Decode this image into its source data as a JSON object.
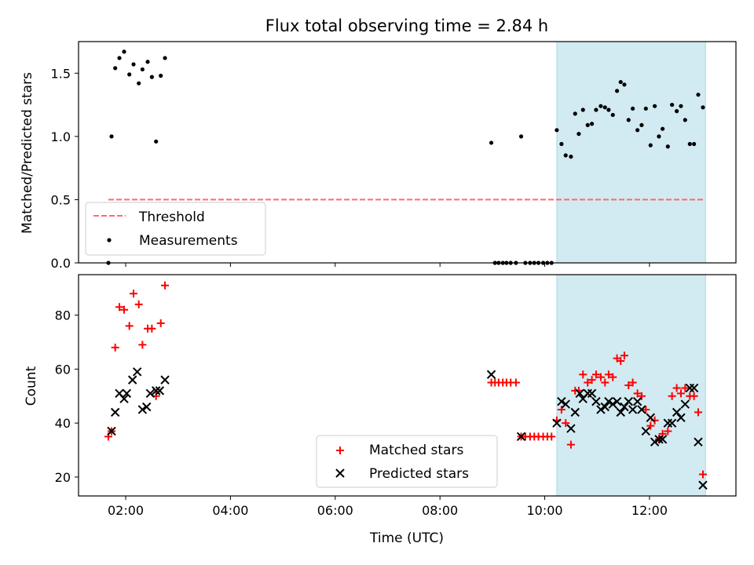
{
  "chart_data": [
    {
      "type": "scatter",
      "title": "Flux total observing time = 2.84 h",
      "ylabel": "Matched/Predicted stars",
      "xlabel": "",
      "xlim": [
        1.1,
        13.65
      ],
      "ylim": [
        0,
        1.75
      ],
      "x_ticks": [
        2,
        4,
        6,
        8,
        10,
        12
      ],
      "y_ticks": [
        0.0,
        0.5,
        1.0,
        1.5
      ],
      "y_tick_labels": [
        "0.0",
        "0.5",
        "1.0",
        "1.5"
      ],
      "shaded_span": {
        "x0": 10.23,
        "x1": 13.07,
        "color": "#add8e6"
      },
      "threshold": {
        "name": "Threshold",
        "y": 0.5,
        "x0": 1.67,
        "x1": 13.03,
        "color": "#ff6b6b"
      },
      "legend": {
        "placement": "lower-left",
        "entries": [
          "Threshold",
          "Measurements"
        ]
      },
      "series": [
        {
          "name": "Measurements",
          "marker": "dot",
          "color": "#000000",
          "points": [
            [
              1.67,
              0.0
            ],
            [
              1.73,
              1.0
            ],
            [
              1.8,
              1.54
            ],
            [
              1.88,
              1.62
            ],
            [
              1.97,
              1.67
            ],
            [
              2.07,
              1.49
            ],
            [
              2.15,
              1.57
            ],
            [
              2.25,
              1.42
            ],
            [
              2.32,
              1.53
            ],
            [
              2.42,
              1.59
            ],
            [
              2.5,
              1.47
            ],
            [
              2.58,
              0.96
            ],
            [
              2.67,
              1.48
            ],
            [
              2.75,
              1.62
            ],
            [
              8.98,
              0.95
            ],
            [
              9.05,
              0.0
            ],
            [
              9.12,
              0.0
            ],
            [
              9.2,
              0.0
            ],
            [
              9.27,
              0.0
            ],
            [
              9.35,
              0.0
            ],
            [
              9.45,
              0.0
            ],
            [
              9.55,
              1.0
            ],
            [
              9.63,
              0.0
            ],
            [
              9.72,
              0.0
            ],
            [
              9.8,
              0.0
            ],
            [
              9.88,
              0.0
            ],
            [
              9.97,
              0.0
            ],
            [
              10.05,
              0.0
            ],
            [
              10.13,
              0.0
            ],
            [
              10.23,
              1.05
            ],
            [
              10.32,
              0.94
            ],
            [
              10.4,
              0.85
            ],
            [
              10.5,
              0.84
            ],
            [
              10.58,
              1.18
            ],
            [
              10.65,
              1.02
            ],
            [
              10.73,
              1.21
            ],
            [
              10.82,
              1.09
            ],
            [
              10.9,
              1.1
            ],
            [
              10.98,
              1.21
            ],
            [
              11.07,
              1.24
            ],
            [
              11.15,
              1.23
            ],
            [
              11.22,
              1.21
            ],
            [
              11.3,
              1.17
            ],
            [
              11.38,
              1.36
            ],
            [
              11.45,
              1.43
            ],
            [
              11.52,
              1.41
            ],
            [
              11.6,
              1.13
            ],
            [
              11.68,
              1.22
            ],
            [
              11.77,
              1.05
            ],
            [
              11.85,
              1.09
            ],
            [
              11.93,
              1.22
            ],
            [
              12.02,
              0.93
            ],
            [
              12.1,
              1.24
            ],
            [
              12.18,
              1.0
            ],
            [
              12.25,
              1.06
            ],
            [
              12.35,
              0.92
            ],
            [
              12.43,
              1.25
            ],
            [
              12.52,
              1.2
            ],
            [
              12.6,
              1.24
            ],
            [
              12.68,
              1.13
            ],
            [
              12.77,
              0.94
            ],
            [
              12.85,
              0.94
            ],
            [
              12.93,
              1.33
            ],
            [
              13.02,
              1.23
            ]
          ]
        }
      ]
    },
    {
      "type": "scatter",
      "title": "",
      "ylabel": "Count",
      "xlabel": "Time (UTC)",
      "xlim": [
        1.1,
        13.65
      ],
      "ylim": [
        13,
        95
      ],
      "x_ticks": [
        2,
        4,
        6,
        8,
        10,
        12
      ],
      "x_tick_labels": [
        "02:00",
        "04:00",
        "06:00",
        "08:00",
        "10:00",
        "12:00"
      ],
      "y_ticks": [
        20,
        40,
        60,
        80
      ],
      "y_tick_labels": [
        "20",
        "40",
        "60",
        "80"
      ],
      "shaded_span": {
        "x0": 10.23,
        "x1": 13.07,
        "color": "#add8e6"
      },
      "legend": {
        "placement": "lower-center",
        "entries": [
          "Matched stars",
          "Predicted stars"
        ]
      },
      "series": [
        {
          "name": "Matched stars",
          "marker": "plus",
          "color": "#ff0000",
          "points": [
            [
              1.67,
              35
            ],
            [
              1.73,
              37
            ],
            [
              1.8,
              68
            ],
            [
              1.88,
              83
            ],
            [
              1.97,
              82
            ],
            [
              2.07,
              76
            ],
            [
              2.15,
              88
            ],
            [
              2.25,
              84
            ],
            [
              2.32,
              69
            ],
            [
              2.42,
              75
            ],
            [
              2.5,
              75
            ],
            [
              2.58,
              50
            ],
            [
              2.67,
              77
            ],
            [
              2.75,
              91
            ],
            [
              8.98,
              55
            ],
            [
              9.05,
              55
            ],
            [
              9.12,
              55
            ],
            [
              9.2,
              55
            ],
            [
              9.27,
              55
            ],
            [
              9.35,
              55
            ],
            [
              9.45,
              55
            ],
            [
              9.55,
              35
            ],
            [
              9.63,
              35
            ],
            [
              9.72,
              35
            ],
            [
              9.8,
              35
            ],
            [
              9.88,
              35
            ],
            [
              9.97,
              35
            ],
            [
              10.05,
              35
            ],
            [
              10.13,
              35
            ],
            [
              10.23,
              41
            ],
            [
              10.32,
              45
            ],
            [
              10.4,
              40
            ],
            [
              10.5,
              32
            ],
            [
              10.58,
              52
            ],
            [
              10.65,
              52
            ],
            [
              10.73,
              58
            ],
            [
              10.82,
              55
            ],
            [
              10.9,
              56
            ],
            [
              10.98,
              58
            ],
            [
              11.07,
              57
            ],
            [
              11.15,
              55
            ],
            [
              11.22,
              58
            ],
            [
              11.3,
              57
            ],
            [
              11.38,
              64
            ],
            [
              11.45,
              63
            ],
            [
              11.52,
              65
            ],
            [
              11.6,
              54
            ],
            [
              11.68,
              55
            ],
            [
              11.77,
              51
            ],
            [
              11.85,
              50
            ],
            [
              11.93,
              45
            ],
            [
              12.02,
              39
            ],
            [
              12.1,
              41
            ],
            [
              12.18,
              34
            ],
            [
              12.25,
              36
            ],
            [
              12.35,
              37
            ],
            [
              12.43,
              50
            ],
            [
              12.52,
              53
            ],
            [
              12.6,
              51
            ],
            [
              12.68,
              53
            ],
            [
              12.77,
              50
            ],
            [
              12.85,
              50
            ],
            [
              12.93,
              44
            ],
            [
              13.02,
              21
            ]
          ]
        },
        {
          "name": "Predicted stars",
          "marker": "x",
          "color": "#000000",
          "points": [
            [
              1.73,
              37
            ],
            [
              1.8,
              44
            ],
            [
              1.88,
              51
            ],
            [
              1.97,
              49
            ],
            [
              2.02,
              51
            ],
            [
              2.13,
              56
            ],
            [
              2.22,
              59
            ],
            [
              2.32,
              45
            ],
            [
              2.4,
              46
            ],
            [
              2.47,
              51
            ],
            [
              2.58,
              52
            ],
            [
              2.65,
              52
            ],
            [
              2.75,
              56
            ],
            [
              8.98,
              58
            ],
            [
              9.55,
              35
            ],
            [
              10.23,
              40
            ],
            [
              10.32,
              48
            ],
            [
              10.4,
              47
            ],
            [
              10.5,
              38
            ],
            [
              10.58,
              44
            ],
            [
              10.67,
              51
            ],
            [
              10.73,
              49
            ],
            [
              10.82,
              51
            ],
            [
              10.9,
              51
            ],
            [
              10.98,
              48
            ],
            [
              11.07,
              45
            ],
            [
              11.15,
              46
            ],
            [
              11.22,
              48
            ],
            [
              11.3,
              47
            ],
            [
              11.38,
              48
            ],
            [
              11.45,
              44
            ],
            [
              11.52,
              46
            ],
            [
              11.6,
              48
            ],
            [
              11.68,
              45
            ],
            [
              11.77,
              48
            ],
            [
              11.85,
              45
            ],
            [
              11.93,
              37
            ],
            [
              12.02,
              42
            ],
            [
              12.1,
              33
            ],
            [
              12.18,
              34
            ],
            [
              12.25,
              34
            ],
            [
              12.35,
              40
            ],
            [
              12.43,
              40
            ],
            [
              12.52,
              44
            ],
            [
              12.6,
              42
            ],
            [
              12.68,
              47
            ],
            [
              12.77,
              53
            ],
            [
              12.85,
              53
            ],
            [
              12.93,
              33
            ],
            [
              13.02,
              17
            ]
          ]
        }
      ]
    }
  ]
}
